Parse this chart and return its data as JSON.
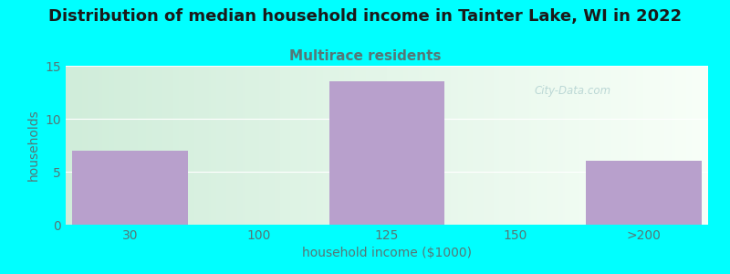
{
  "title": "Distribution of median household income in Tainter Lake, WI in 2022",
  "subtitle": "Multirace residents",
  "xlabel": "household income ($1000)",
  "ylabel": "households",
  "categories": [
    "30",
    "100",
    "125",
    "150",
    ">200"
  ],
  "values": [
    7,
    0,
    13.5,
    0,
    6
  ],
  "bar_color": "#b8a0cc",
  "background_color": "#00ffff",
  "plot_bg_gradient_left": "#d0edda",
  "plot_bg_gradient_right": "#f8fff8",
  "title_fontsize": 13,
  "subtitle_fontsize": 11,
  "subtitle_color": "#557777",
  "ylabel_color": "#557777",
  "xlabel_color": "#557777",
  "tick_color": "#557777",
  "ylim": [
    0,
    15
  ],
  "yticks": [
    0,
    5,
    10,
    15
  ],
  "bar_positions": [
    0,
    1,
    2,
    3,
    4
  ],
  "bar_width": 0.9,
  "watermark": "City-Data.com"
}
